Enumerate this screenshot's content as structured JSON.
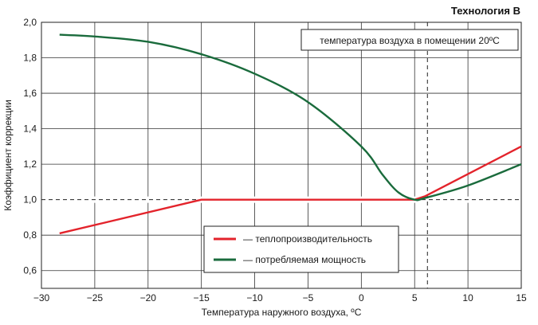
{
  "chart_data": {
    "type": "line",
    "title": "Технология B",
    "annotation": "температура воздуха в помещении 20ºC",
    "xlabel": "Температура наружного воздуха, ºC",
    "ylabel": "Коэффициент коррекции",
    "xlim": [
      -30,
      15
    ],
    "ylim": [
      0.5,
      2.0
    ],
    "x_ticks": [
      -30,
      -25,
      -20,
      -15,
      -10,
      -5,
      0,
      5,
      10,
      15
    ],
    "x_tick_labels": [
      "−30",
      "−25",
      "−20",
      "−15",
      "−10",
      "−5",
      "0",
      "5",
      "10",
      "15"
    ],
    "y_ticks": [
      0.6,
      0.8,
      1.0,
      1.2,
      1.4,
      1.6,
      1.8,
      2.0
    ],
    "y_tick_labels": [
      "0,6",
      "0,8",
      "1,0",
      "1,2",
      "1,4",
      "1,6",
      "1,8",
      "2,0"
    ],
    "reference_lines": {
      "y": 1.0,
      "x": 6.2
    },
    "grid": true,
    "legend_position": "bottom-center",
    "series": [
      {
        "name": "— теплопроизводительность",
        "color": "#e3232b",
        "x": [
          -28.3,
          -15,
          5,
          6,
          15
        ],
        "y": [
          0.81,
          1.0,
          1.0,
          1.02,
          1.3
        ]
      },
      {
        "name": "— потребляемая мощность",
        "color": "#1a6b3c",
        "x": [
          -28.3,
          -25,
          -20,
          -15,
          -10,
          -5,
          0,
          2,
          3.5,
          5,
          6,
          10,
          15
        ],
        "y": [
          1.93,
          1.92,
          1.89,
          1.82,
          1.71,
          1.55,
          1.3,
          1.14,
          1.04,
          1.0,
          1.01,
          1.08,
          1.2
        ]
      }
    ]
  }
}
